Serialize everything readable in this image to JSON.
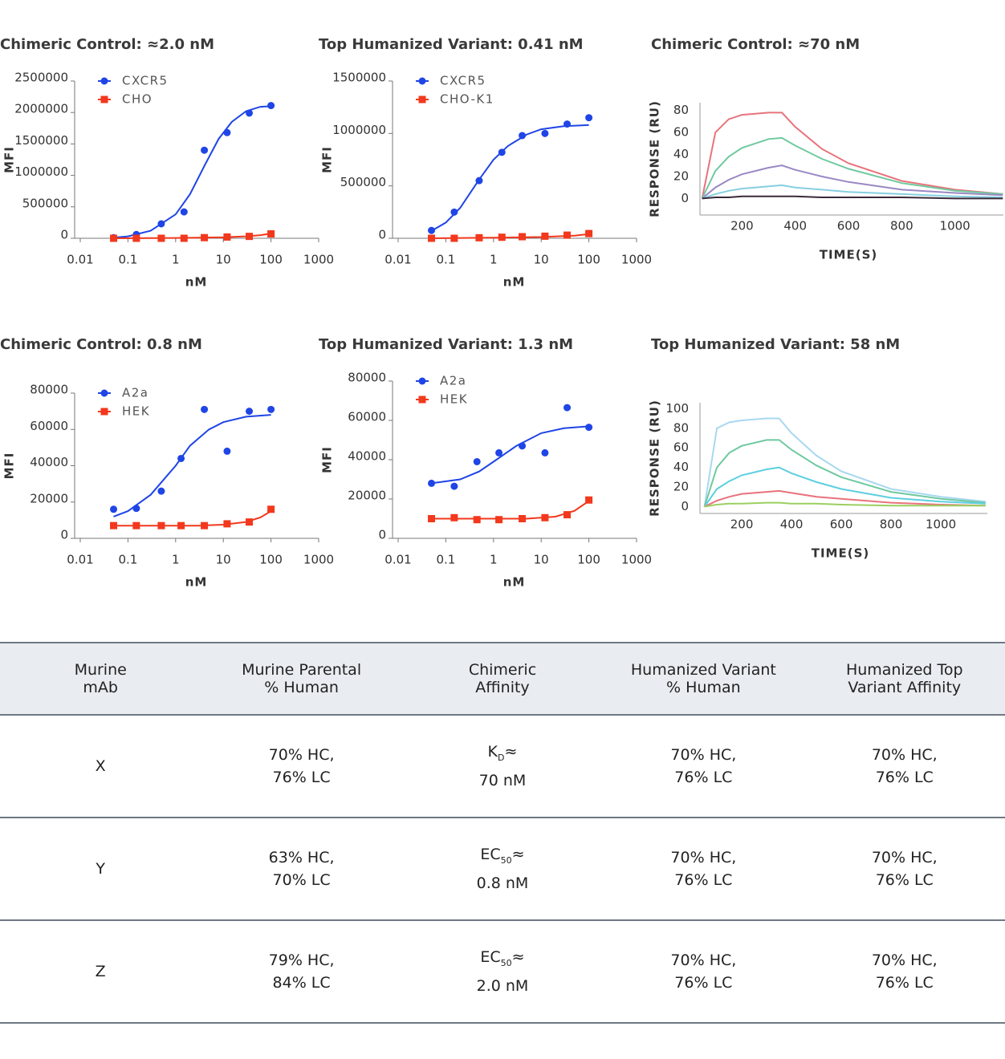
{
  "chart_data": [
    {
      "type": "scatter",
      "title": "Chimeric Control: ≈2.0 nM",
      "xlabel": "nM",
      "ylabel": "MFI",
      "xscale": "log",
      "xlim": [
        0.01,
        1000
      ],
      "xticks": [
        0.01,
        0.1,
        1,
        10,
        100,
        1000
      ],
      "ylim": [
        0,
        2500000
      ],
      "yticks": [
        0,
        500000,
        1000000,
        1500000,
        2000000,
        2500000
      ],
      "legend": "upper left",
      "series": [
        {
          "name": "CXCR5",
          "color": "#1f45e6",
          "marker": "circle",
          "x": [
            0.05,
            0.15,
            0.5,
            1.5,
            4,
            12,
            35,
            100
          ],
          "values": [
            10000,
            60000,
            230000,
            420000,
            1400000,
            1680000,
            1990000,
            2110000
          ],
          "fit": {
            "x": [
              0.05,
              0.1,
              0.3,
              1,
              2,
              4,
              8,
              15,
              30,
              60,
              100
            ],
            "values": [
              10000,
              30000,
              120000,
              380000,
              700000,
              1150000,
              1580000,
              1850000,
              2020000,
              2090000,
              2100000
            ]
          }
        },
        {
          "name": "CHO",
          "color": "#f2381d",
          "marker": "square",
          "x": [
            0.05,
            0.15,
            0.5,
            1.5,
            4,
            12,
            35,
            100
          ],
          "values": [
            0,
            0,
            0,
            0,
            10000,
            20000,
            30000,
            70000
          ],
          "fit": {
            "x": [
              0.05,
              1,
              10,
              30,
              60,
              100
            ],
            "values": [
              0,
              5000,
              15000,
              30000,
              50000,
              75000
            ]
          }
        }
      ]
    },
    {
      "type": "scatter",
      "title": "Top Humanized Variant: 0.41 nM",
      "xlabel": "nM",
      "ylabel": "MFI",
      "xscale": "log",
      "xlim": [
        0.01,
        1000
      ],
      "xticks": [
        0.01,
        0.1,
        1,
        10,
        100,
        1000
      ],
      "ylim": [
        0,
        1500000
      ],
      "yticks": [
        0,
        500000,
        1000000,
        1500000
      ],
      "legend": "upper left",
      "series": [
        {
          "name": "CXCR5",
          "color": "#1f45e6",
          "marker": "circle",
          "x": [
            0.05,
            0.15,
            0.5,
            1.5,
            4,
            12,
            35,
            100
          ],
          "values": [
            75000,
            250000,
            550000,
            820000,
            980000,
            1000000,
            1090000,
            1150000
          ],
          "fit": {
            "x": [
              0.05,
              0.1,
              0.2,
              0.5,
              1,
              2,
              5,
              10,
              30,
              100
            ],
            "values": [
              70000,
              150000,
              290000,
              560000,
              750000,
              880000,
              990000,
              1040000,
              1070000,
              1080000
            ]
          }
        },
        {
          "name": "CHO-K1",
          "color": "#f2381d",
          "marker": "square",
          "x": [
            0.05,
            0.15,
            0.5,
            1.5,
            4,
            12,
            35,
            100
          ],
          "values": [
            0,
            0,
            5000,
            10000,
            15000,
            20000,
            30000,
            45000
          ],
          "fit": {
            "x": [
              0.05,
              1,
              10,
              50,
              100
            ],
            "values": [
              0,
              5000,
              12000,
              25000,
              40000
            ]
          }
        }
      ]
    },
    {
      "type": "line",
      "title": "Chimeric Control: ≈70 nM",
      "xlabel": "TIME(S)",
      "ylabel": "RESPONSE (RU)",
      "xlim": [
        42,
        1182
      ],
      "xticks": [
        200,
        400,
        600,
        800,
        1000
      ],
      "ylim": [
        -15,
        87
      ],
      "yticks": [
        0,
        20,
        40,
        60,
        80
      ],
      "x": [
        50,
        100,
        150,
        200,
        300,
        350,
        400,
        500,
        600,
        800,
        1000,
        1180
      ],
      "series": [
        {
          "color": "#e8737b",
          "values": [
            0,
            60,
            72,
            76,
            78,
            78,
            65,
            45,
            32,
            16,
            8,
            4
          ]
        },
        {
          "color": "#6fc9a0",
          "values": [
            0,
            25,
            38,
            46,
            54,
            55,
            48,
            36,
            27,
            14,
            7,
            4
          ]
        },
        {
          "color": "#9a88c4",
          "values": [
            0,
            10,
            17,
            22,
            28,
            30,
            26,
            20,
            15,
            8,
            5,
            3
          ]
        },
        {
          "color": "#86cfe0",
          "values": [
            0,
            4,
            7,
            9,
            11,
            12,
            10,
            8,
            6,
            4,
            2,
            1
          ]
        },
        {
          "color": "#3a2a3a",
          "values": [
            0,
            1,
            1,
            2,
            2,
            2,
            2,
            1,
            1,
            1,
            0,
            0
          ]
        }
      ]
    },
    {
      "type": "scatter",
      "title": "Chimeric Control: 0.8 nM",
      "xlabel": "nM",
      "ylabel": "MFI",
      "xscale": "log",
      "xlim": [
        0.01,
        1000
      ],
      "xticks": [
        0.01,
        0.1,
        1,
        10,
        100,
        1000
      ],
      "ylim": [
        0,
        80000
      ],
      "yticks": [
        0,
        20000,
        40000,
        60000,
        80000
      ],
      "legend": "upper left",
      "series": [
        {
          "name": "A2a",
          "color": "#1f45e6",
          "marker": "circle",
          "x": [
            0.05,
            0.15,
            0.5,
            1.3,
            4,
            12,
            35,
            100
          ],
          "values": [
            16000,
            16500,
            26000,
            44000,
            71000,
            48000,
            70000,
            71000
          ],
          "fit": {
            "x": [
              0.05,
              0.1,
              0.3,
              1,
              2,
              5,
              10,
              30,
              100
            ],
            "values": [
              12000,
              15000,
              24000,
              40000,
              51000,
              60000,
              64000,
              67000,
              68000
            ]
          }
        },
        {
          "name": "HEK",
          "color": "#f2381d",
          "marker": "square",
          "x": [
            0.05,
            0.15,
            0.5,
            1.3,
            4,
            12,
            35,
            100
          ],
          "values": [
            7000,
            7000,
            7000,
            7000,
            7000,
            8000,
            9000,
            16000
          ],
          "fit": {
            "x": [
              0.05,
              3,
              10,
              30,
              60,
              100
            ],
            "values": [
              7000,
              7000,
              7500,
              9000,
              11500,
              15000
            ]
          }
        }
      ]
    },
    {
      "type": "scatter",
      "title": "Top Humanized Variant: 1.3 nM",
      "xlabel": "nM",
      "ylabel": "MFI",
      "xscale": "log",
      "xlim": [
        0.01,
        1000
      ],
      "xticks": [
        0.01,
        0.1,
        1,
        10,
        100,
        1000
      ],
      "ylim": [
        0,
        80000
      ],
      "yticks": [
        0,
        20000,
        40000,
        60000,
        80000
      ],
      "legend": "upper left",
      "series": [
        {
          "name": "A2a",
          "color": "#1f45e6",
          "marker": "circle",
          "x": [
            0.05,
            0.15,
            0.45,
            1.3,
            4,
            12,
            35,
            100
          ],
          "values": [
            28000,
            26500,
            39000,
            43500,
            47000,
            43500,
            66500,
            56500
          ],
          "fit": {
            "x": [
              0.05,
              0.2,
              0.5,
              1,
              3,
              10,
              30,
              100
            ],
            "values": [
              28000,
              30000,
              34000,
              39000,
              47000,
              53500,
              56000,
              57000
            ]
          }
        },
        {
          "name": "HEK",
          "color": "#f2381d",
          "marker": "square",
          "x": [
            0.05,
            0.15,
            0.45,
            1.3,
            4,
            12,
            35,
            100
          ],
          "values": [
            10000,
            10500,
            9500,
            9500,
            10000,
            10500,
            12000,
            19500
          ],
          "fit": {
            "x": [
              0.05,
              5,
              20,
              50,
              100
            ],
            "values": [
              10000,
              10000,
              11000,
              14000,
              19000
            ]
          }
        }
      ]
    },
    {
      "type": "line",
      "title": "Top Humanized Variant: 58 nM",
      "xlabel": "TIME(S)",
      "ylabel": "RESPONSE (RU)",
      "xlim": [
        32,
        1187
      ],
      "xticks": [
        200,
        400,
        600,
        800,
        1000
      ],
      "ylim": [
        -7,
        106
      ],
      "yticks": [
        0,
        20,
        40,
        60,
        80,
        100
      ],
      "x": [
        50,
        100,
        150,
        200,
        300,
        350,
        400,
        500,
        600,
        800,
        1000,
        1180
      ],
      "series": [
        {
          "color": "#a8d8f0",
          "values": [
            0,
            80,
            86,
            88,
            90,
            90,
            75,
            52,
            36,
            18,
            10,
            5
          ]
        },
        {
          "color": "#6fc9a0",
          "values": [
            0,
            40,
            55,
            62,
            68,
            68,
            58,
            42,
            30,
            15,
            8,
            4
          ]
        },
        {
          "color": "#5ccfe0",
          "values": [
            0,
            18,
            26,
            32,
            38,
            40,
            34,
            25,
            18,
            9,
            5,
            3
          ]
        },
        {
          "color": "#e8737b",
          "values": [
            0,
            6,
            10,
            13,
            15,
            16,
            14,
            10,
            8,
            4,
            2,
            1
          ]
        },
        {
          "color": "#9bd060",
          "values": [
            0,
            2,
            3,
            3,
            4,
            4,
            3,
            3,
            2,
            1,
            1,
            1
          ]
        }
      ]
    }
  ],
  "table": {
    "header": [
      [
        "Murine",
        "mAb"
      ],
      [
        "Murine Parental",
        "% Human"
      ],
      [
        "Chimeric",
        "Affinity"
      ],
      [
        "Humanized Variant",
        "% Human"
      ],
      [
        "Humanized Top",
        "Variant Affinity"
      ]
    ],
    "rows": [
      [
        [
          "X"
        ],
        [
          "70% HC,",
          "76% LC"
        ],
        [
          {
            "base": "K",
            "sub": "D",
            "suffix": "≈"
          },
          "70 nM"
        ],
        [
          "70% HC,",
          "76% LC"
        ],
        [
          "70% HC,",
          "76% LC"
        ]
      ],
      [
        [
          "Y"
        ],
        [
          "63% HC,",
          "70% LC"
        ],
        [
          {
            "base": "EC",
            "sub": "50",
            "suffix": "≈"
          },
          "0.8 nM"
        ],
        [
          "70% HC,",
          "76% LC"
        ],
        [
          "70% HC,",
          "76% LC"
        ]
      ],
      [
        [
          "Z"
        ],
        [
          "79% HC,",
          "84% LC"
        ],
        [
          {
            "base": "EC",
            "sub": "50",
            "suffix": "≈"
          },
          "2.0 nM"
        ],
        [
          "70% HC,",
          "76% LC"
        ],
        [
          "70% HC,",
          "76% LC"
        ]
      ]
    ]
  }
}
